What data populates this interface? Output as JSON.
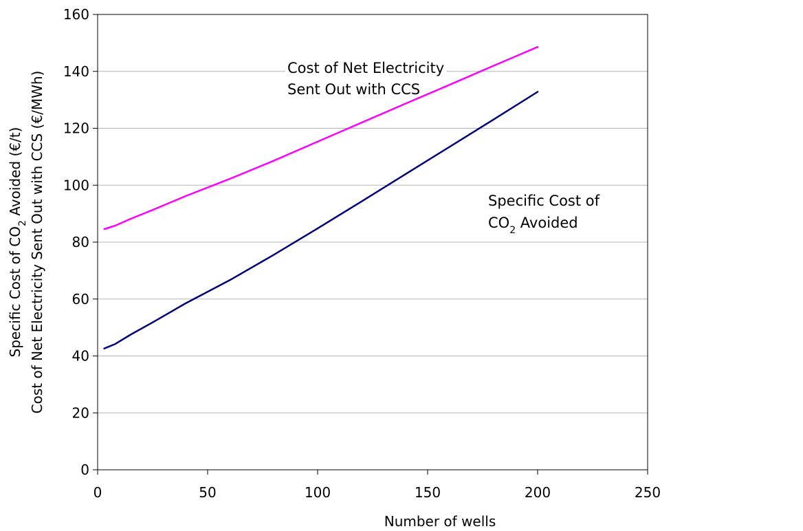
{
  "chart_data": {
    "type": "line",
    "xlabel": "Number of wells",
    "ylabel_line1": "Specific Cost of CO2 Avoided (€/t)",
    "ylabel_line2": "Cost of Net Electricity Sent Out with CCS (€/MWh)",
    "xlim": [
      0,
      250
    ],
    "ylim": [
      0,
      160
    ],
    "x_ticks": [
      "0",
      "50",
      "100",
      "150",
      "200",
      "250"
    ],
    "y_ticks": [
      "0",
      "20",
      "40",
      "60",
      "80",
      "100",
      "120",
      "140",
      "160"
    ],
    "grid": "horizontal",
    "legend": "none",
    "series": [
      {
        "name": "Cost of Net Electricity Sent Out with CCS",
        "color": "#ff00ff",
        "x": [
          3,
          8,
          15,
          25,
          40,
          60,
          80,
          100,
          120,
          140,
          160,
          180,
          200
        ],
        "y": [
          84.6,
          85.8,
          88.2,
          91.3,
          96.2,
          102.2,
          108.6,
          115.3,
          122.0,
          128.7,
          135.3,
          142.0,
          148.6
        ]
      },
      {
        "name": "Specific Cost of CO2 Avoided",
        "color": "#000080",
        "x": [
          3,
          8,
          15,
          25,
          40,
          60,
          80,
          100,
          120,
          140,
          160,
          180,
          200
        ],
        "y": [
          42.6,
          44.2,
          47.5,
          51.8,
          58.5,
          66.6,
          75.5,
          84.8,
          94.3,
          103.9,
          113.5,
          123.1,
          132.8
        ]
      }
    ],
    "annotations": [
      {
        "lines": [
          "Cost of Net Electricity",
          "Sent Out with CCS"
        ]
      },
      {
        "lines": [
          "Specific Cost of",
          "CO2 Avoided"
        ]
      }
    ]
  }
}
